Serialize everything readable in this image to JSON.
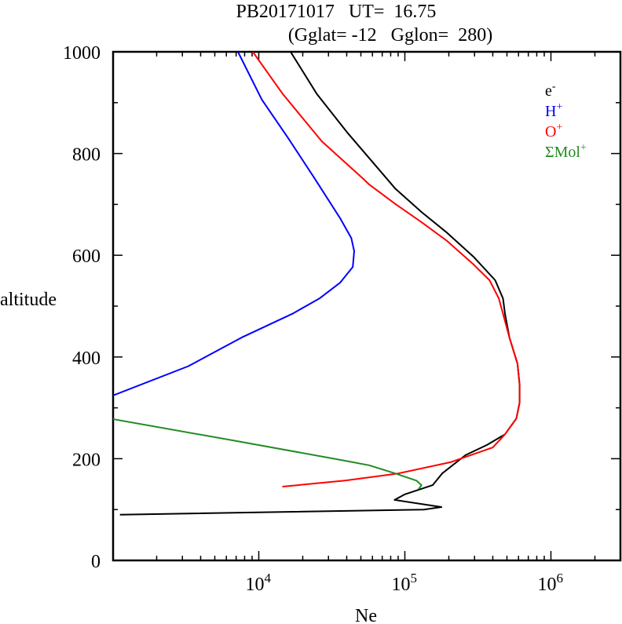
{
  "chart_data": {
    "type": "line",
    "title": "PB20171017   UT=  16.75",
    "subtitle": "(Gglat= -12   Gglon=  280)",
    "xlabel": "Ne",
    "ylabel": "altitude",
    "xscale": "log",
    "xlim": [
      1000,
      3000000
    ],
    "ylim": [
      0,
      1000
    ],
    "grid": false,
    "legend_position": "top-right",
    "x_ticks": [
      {
        "value": 10000,
        "base": "10",
        "exp": "4"
      },
      {
        "value": 100000,
        "base": "10",
        "exp": "5"
      },
      {
        "value": 1000000,
        "base": "10",
        "exp": "6"
      }
    ],
    "y_ticks": [
      0,
      200,
      400,
      600,
      800,
      1000
    ],
    "series": [
      {
        "name": "e-",
        "label_base": "e",
        "label_sup": "-",
        "color": "#000000",
        "points": [
          [
            1120,
            90
          ],
          [
            135000,
            100
          ],
          [
            178000,
            105
          ],
          [
            85000,
            119
          ],
          [
            100000,
            130
          ],
          [
            155000,
            148
          ],
          [
            180000,
            171
          ],
          [
            260000,
            207
          ],
          [
            365000,
            227
          ],
          [
            485000,
            248
          ],
          [
            580000,
            279
          ],
          [
            610000,
            310
          ],
          [
            610000,
            346
          ],
          [
            590000,
            387
          ],
          [
            520000,
            438
          ],
          [
            485000,
            485
          ],
          [
            470000,
            515
          ],
          [
            415000,
            551
          ],
          [
            295000,
            597
          ],
          [
            195000,
            644
          ],
          [
            130000,
            685
          ],
          [
            86000,
            731
          ],
          [
            73000,
            755
          ],
          [
            40700,
            840
          ],
          [
            25000,
            917
          ],
          [
            16500,
            1000
          ]
        ]
      },
      {
        "name": "H+",
        "label_base": "H",
        "label_sup": "+",
        "color": "#0000ff",
        "points": [
          [
            1000,
            324
          ],
          [
            3300,
            382
          ],
          [
            7600,
            438
          ],
          [
            17000,
            485
          ],
          [
            26000,
            515
          ],
          [
            36000,
            546
          ],
          [
            44000,
            577
          ],
          [
            45000,
            608
          ],
          [
            43000,
            634
          ],
          [
            36000,
            673
          ],
          [
            24000,
            752
          ],
          [
            16000,
            829
          ],
          [
            10500,
            906
          ],
          [
            7200,
            1000
          ]
        ]
      },
      {
        "name": "O+",
        "label_base": "O",
        "label_sup": "+",
        "color": "#ff0000",
        "points": [
          [
            14500,
            145
          ],
          [
            39000,
            157
          ],
          [
            90000,
            171
          ],
          [
            205000,
            193
          ],
          [
            400000,
            222
          ],
          [
            485000,
            248
          ],
          [
            580000,
            279
          ],
          [
            610000,
            310
          ],
          [
            610000,
            346
          ],
          [
            590000,
            387
          ],
          [
            520000,
            438
          ],
          [
            470000,
            485
          ],
          [
            440000,
            515
          ],
          [
            380000,
            551
          ],
          [
            295000,
            582
          ],
          [
            195000,
            628
          ],
          [
            130000,
            665
          ],
          [
            86000,
            701
          ],
          [
            57000,
            739
          ],
          [
            52000,
            750
          ],
          [
            27000,
            824
          ],
          [
            14600,
            917
          ],
          [
            9100,
            1000
          ]
        ]
      },
      {
        "name": "ΣMol+",
        "label_base": "ΣMol",
        "label_sup": "+",
        "color": "#228b22",
        "points": [
          [
            1000,
            278
          ],
          [
            7600,
            233
          ],
          [
            39000,
            196
          ],
          [
            57000,
            187
          ],
          [
            86000,
            171
          ],
          [
            120000,
            157
          ],
          [
            130000,
            148
          ],
          [
            124000,
            140
          ]
        ]
      }
    ]
  }
}
